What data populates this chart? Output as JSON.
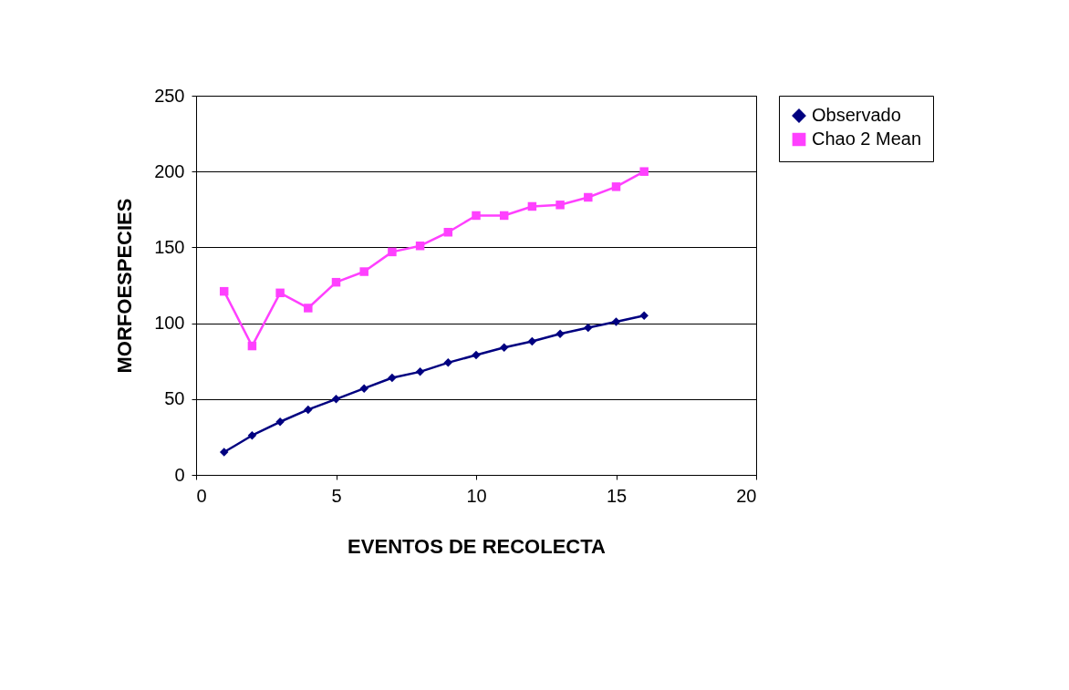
{
  "chart_data": {
    "type": "line",
    "xlabel": "EVENTOS DE RECOLECTA",
    "ylabel": "MORFOESPECIES",
    "xlim": [
      0,
      20
    ],
    "xticks": [
      0,
      5,
      10,
      15,
      20
    ],
    "ylim": [
      0,
      250
    ],
    "yticks": [
      0,
      50,
      100,
      150,
      200,
      250
    ],
    "grid": "y",
    "legend": "right",
    "series": [
      {
        "name": "Observado",
        "color": "#000080",
        "marker": "diamond",
        "x": [
          1,
          2,
          3,
          4,
          5,
          6,
          7,
          8,
          9,
          10,
          11,
          12,
          13,
          14,
          15,
          16
        ],
        "values": [
          15,
          26,
          35,
          43,
          50,
          57,
          64,
          68,
          74,
          79,
          84,
          88,
          93,
          97,
          101,
          105
        ]
      },
      {
        "name": "Chao 2 Mean",
        "color": "#ff40ff",
        "marker": "square",
        "x": [
          1,
          2,
          3,
          4,
          5,
          6,
          7,
          8,
          9,
          10,
          11,
          12,
          13,
          14,
          15,
          16
        ],
        "values": [
          121,
          85,
          120,
          110,
          127,
          134,
          147,
          151,
          160,
          171,
          171,
          177,
          178,
          183,
          190,
          200
        ]
      }
    ]
  }
}
